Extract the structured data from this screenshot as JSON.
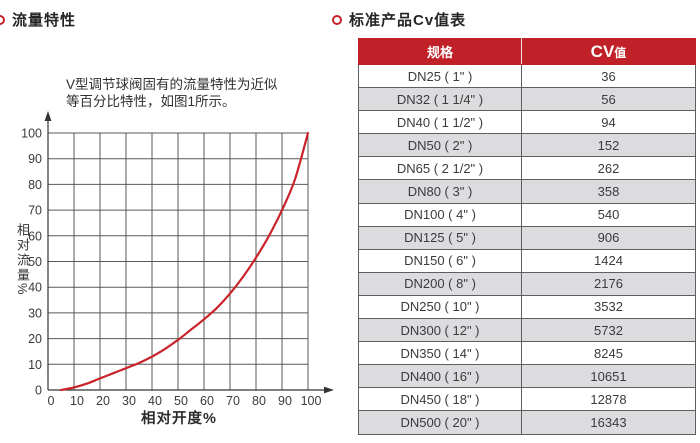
{
  "left_section": {
    "title": "流量特性"
  },
  "chart_data": {
    "type": "line",
    "title": "",
    "xlabel": "相对开度%",
    "ylabel": "相对流量%",
    "xlim": [
      0,
      100
    ],
    "ylim": [
      0,
      100
    ],
    "x_ticks": [
      0,
      10,
      20,
      30,
      40,
      50,
      60,
      70,
      80,
      90,
      100
    ],
    "y_ticks": [
      0,
      10,
      20,
      30,
      40,
      50,
      60,
      70,
      80,
      90,
      100
    ],
    "grid": true,
    "legend": false,
    "annotation": [
      "V型调节球阀固有的流量特性为近似",
      "等百分比特性，如图1所示。"
    ],
    "series": [
      {
        "name": "equal-percentage-flow-curve",
        "color": "#cb232b",
        "x": [
          5,
          10,
          15,
          20,
          25,
          30,
          35,
          40,
          45,
          50,
          55,
          60,
          65,
          70,
          75,
          80,
          85,
          90,
          95,
          100
        ],
        "y": [
          0,
          1,
          2.5,
          4.5,
          6.5,
          8.5,
          10.5,
          13,
          16,
          19.5,
          23.5,
          27.5,
          32,
          37.5,
          44,
          51.5,
          60,
          70,
          82,
          100
        ]
      }
    ]
  },
  "right_section": {
    "title": "标准产品Cv值表",
    "table": {
      "headers": [
        "规格",
        "CV值"
      ],
      "cv_header_big": "CV",
      "cv_header_small": "值",
      "rows": [
        {
          "spec": "DN25 ( 1\" )",
          "cv": "36"
        },
        {
          "spec": "DN32 ( 1 1/4\" )",
          "cv": "56"
        },
        {
          "spec": "DN40 ( 1 1/2\" )",
          "cv": "94"
        },
        {
          "spec": "DN50 ( 2\" )",
          "cv": "152"
        },
        {
          "spec": "DN65 ( 2 1/2\" )",
          "cv": "262"
        },
        {
          "spec": "DN80 ( 3\" )",
          "cv": "358"
        },
        {
          "spec": "DN100 ( 4\" )",
          "cv": "540"
        },
        {
          "spec": "DN125 ( 5\" )",
          "cv": "906"
        },
        {
          "spec": "DN150 ( 6\" )",
          "cv": "1424"
        },
        {
          "spec": "DN200 ( 8\" )",
          "cv": "2176"
        },
        {
          "spec": "DN250 ( 10\" )",
          "cv": "3532"
        },
        {
          "spec": "DN300 ( 12\" )",
          "cv": "5732"
        },
        {
          "spec": "DN350 ( 14\" )",
          "cv": "8245"
        },
        {
          "spec": "DN400 ( 16\" )",
          "cv": "10651"
        },
        {
          "spec": "DN450 ( 18\" )",
          "cv": "12878"
        },
        {
          "spec": "DN500 ( 20\" )",
          "cv": "16343"
        }
      ]
    }
  },
  "colors": {
    "accent_red": "#c02128",
    "curve_red": "#cb232b",
    "grid_gray": "#59595b",
    "axis_dark": "#343436",
    "alt_row": "#dcdcde",
    "text_dark": "#3b3b3d"
  }
}
